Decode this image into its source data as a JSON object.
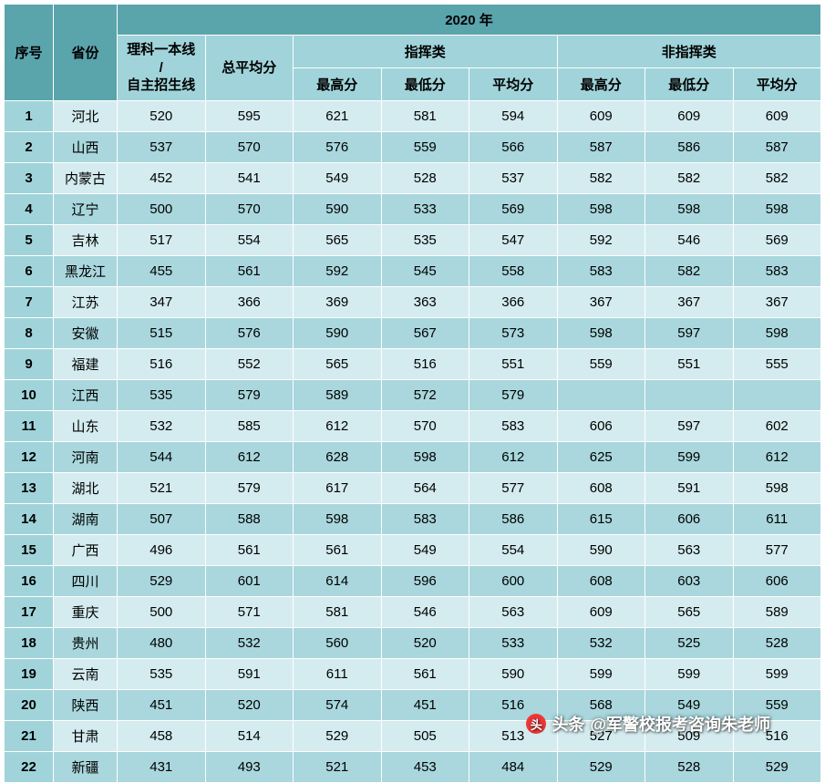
{
  "header": {
    "year": "2020 年",
    "seq": "序号",
    "province": "省份",
    "line1": "理科一本线",
    "line_sep": "/",
    "line2": "自主招生线",
    "total_avg": "总平均分",
    "cmd": "指挥类",
    "noncmd": "非指挥类",
    "max": "最高分",
    "min": "最低分",
    "avg": "平均分"
  },
  "style": {
    "header_bg": "#5aa4ac",
    "subheader_bg": "#a0d4da",
    "row_odd_bg": "#d4ecef",
    "row_even_bg": "#a9d7dd",
    "border_color": "#ffffff",
    "font_size": 15,
    "header_font_weight": "bold"
  },
  "columns": [
    "seq",
    "province",
    "line",
    "total_avg",
    "cmd_max",
    "cmd_min",
    "cmd_avg",
    "nc_max",
    "nc_min",
    "nc_avg"
  ],
  "rows": [
    {
      "seq": "1",
      "province": "河北",
      "line": "520",
      "total_avg": "595",
      "cmd_max": "621",
      "cmd_min": "581",
      "cmd_avg": "594",
      "nc_max": "609",
      "nc_min": "609",
      "nc_avg": "609"
    },
    {
      "seq": "2",
      "province": "山西",
      "line": "537",
      "total_avg": "570",
      "cmd_max": "576",
      "cmd_min": "559",
      "cmd_avg": "566",
      "nc_max": "587",
      "nc_min": "586",
      "nc_avg": "587"
    },
    {
      "seq": "3",
      "province": "内蒙古",
      "line": "452",
      "total_avg": "541",
      "cmd_max": "549",
      "cmd_min": "528",
      "cmd_avg": "537",
      "nc_max": "582",
      "nc_min": "582",
      "nc_avg": "582"
    },
    {
      "seq": "4",
      "province": "辽宁",
      "line": "500",
      "total_avg": "570",
      "cmd_max": "590",
      "cmd_min": "533",
      "cmd_avg": "569",
      "nc_max": "598",
      "nc_min": "598",
      "nc_avg": "598"
    },
    {
      "seq": "5",
      "province": "吉林",
      "line": "517",
      "total_avg": "554",
      "cmd_max": "565",
      "cmd_min": "535",
      "cmd_avg": "547",
      "nc_max": "592",
      "nc_min": "546",
      "nc_avg": "569"
    },
    {
      "seq": "6",
      "province": "黑龙江",
      "line": "455",
      "total_avg": "561",
      "cmd_max": "592",
      "cmd_min": "545",
      "cmd_avg": "558",
      "nc_max": "583",
      "nc_min": "582",
      "nc_avg": "583"
    },
    {
      "seq": "7",
      "province": "江苏",
      "line": "347",
      "total_avg": "366",
      "cmd_max": "369",
      "cmd_min": "363",
      "cmd_avg": "366",
      "nc_max": "367",
      "nc_min": "367",
      "nc_avg": "367"
    },
    {
      "seq": "8",
      "province": "安徽",
      "line": "515",
      "total_avg": "576",
      "cmd_max": "590",
      "cmd_min": "567",
      "cmd_avg": "573",
      "nc_max": "598",
      "nc_min": "597",
      "nc_avg": "598"
    },
    {
      "seq": "9",
      "province": "福建",
      "line": "516",
      "total_avg": "552",
      "cmd_max": "565",
      "cmd_min": "516",
      "cmd_avg": "551",
      "nc_max": "559",
      "nc_min": "551",
      "nc_avg": "555"
    },
    {
      "seq": "10",
      "province": "江西",
      "line": "535",
      "total_avg": "579",
      "cmd_max": "589",
      "cmd_min": "572",
      "cmd_avg": "579",
      "nc_max": "",
      "nc_min": "",
      "nc_avg": ""
    },
    {
      "seq": "11",
      "province": "山东",
      "line": "532",
      "total_avg": "585",
      "cmd_max": "612",
      "cmd_min": "570",
      "cmd_avg": "583",
      "nc_max": "606",
      "nc_min": "597",
      "nc_avg": "602"
    },
    {
      "seq": "12",
      "province": "河南",
      "line": "544",
      "total_avg": "612",
      "cmd_max": "628",
      "cmd_min": "598",
      "cmd_avg": "612",
      "nc_max": "625",
      "nc_min": "599",
      "nc_avg": "612"
    },
    {
      "seq": "13",
      "province": "湖北",
      "line": "521",
      "total_avg": "579",
      "cmd_max": "617",
      "cmd_min": "564",
      "cmd_avg": "577",
      "nc_max": "608",
      "nc_min": "591",
      "nc_avg": "598"
    },
    {
      "seq": "14",
      "province": "湖南",
      "line": "507",
      "total_avg": "588",
      "cmd_max": "598",
      "cmd_min": "583",
      "cmd_avg": "586",
      "nc_max": "615",
      "nc_min": "606",
      "nc_avg": "611"
    },
    {
      "seq": "15",
      "province": "广西",
      "line": "496",
      "total_avg": "561",
      "cmd_max": "561",
      "cmd_min": "549",
      "cmd_avg": "554",
      "nc_max": "590",
      "nc_min": "563",
      "nc_avg": "577"
    },
    {
      "seq": "16",
      "province": "四川",
      "line": "529",
      "total_avg": "601",
      "cmd_max": "614",
      "cmd_min": "596",
      "cmd_avg": "600",
      "nc_max": "608",
      "nc_min": "603",
      "nc_avg": "606"
    },
    {
      "seq": "17",
      "province": "重庆",
      "line": "500",
      "total_avg": "571",
      "cmd_max": "581",
      "cmd_min": "546",
      "cmd_avg": "563",
      "nc_max": "609",
      "nc_min": "565",
      "nc_avg": "589"
    },
    {
      "seq": "18",
      "province": "贵州",
      "line": "480",
      "total_avg": "532",
      "cmd_max": "560",
      "cmd_min": "520",
      "cmd_avg": "533",
      "nc_max": "532",
      "nc_min": "525",
      "nc_avg": "528"
    },
    {
      "seq": "19",
      "province": "云南",
      "line": "535",
      "total_avg": "591",
      "cmd_max": "611",
      "cmd_min": "561",
      "cmd_avg": "590",
      "nc_max": "599",
      "nc_min": "599",
      "nc_avg": "599"
    },
    {
      "seq": "20",
      "province": "陕西",
      "line": "451",
      "total_avg": "520",
      "cmd_max": "574",
      "cmd_min": "451",
      "cmd_avg": "516",
      "nc_max": "568",
      "nc_min": "549",
      "nc_avg": "559"
    },
    {
      "seq": "21",
      "province": "甘肃",
      "line": "458",
      "total_avg": "514",
      "cmd_max": "529",
      "cmd_min": "505",
      "cmd_avg": "513",
      "nc_max": "527",
      "nc_min": "509",
      "nc_avg": "516"
    },
    {
      "seq": "22",
      "province": "新疆",
      "line": "431",
      "total_avg": "493",
      "cmd_max": "521",
      "cmd_min": "453",
      "cmd_avg": "484",
      "nc_max": "529",
      "nc_min": "528",
      "nc_avg": "529"
    }
  ],
  "watermark": {
    "prefix": "头条",
    "text": "@军警校报考咨询朱老师"
  }
}
